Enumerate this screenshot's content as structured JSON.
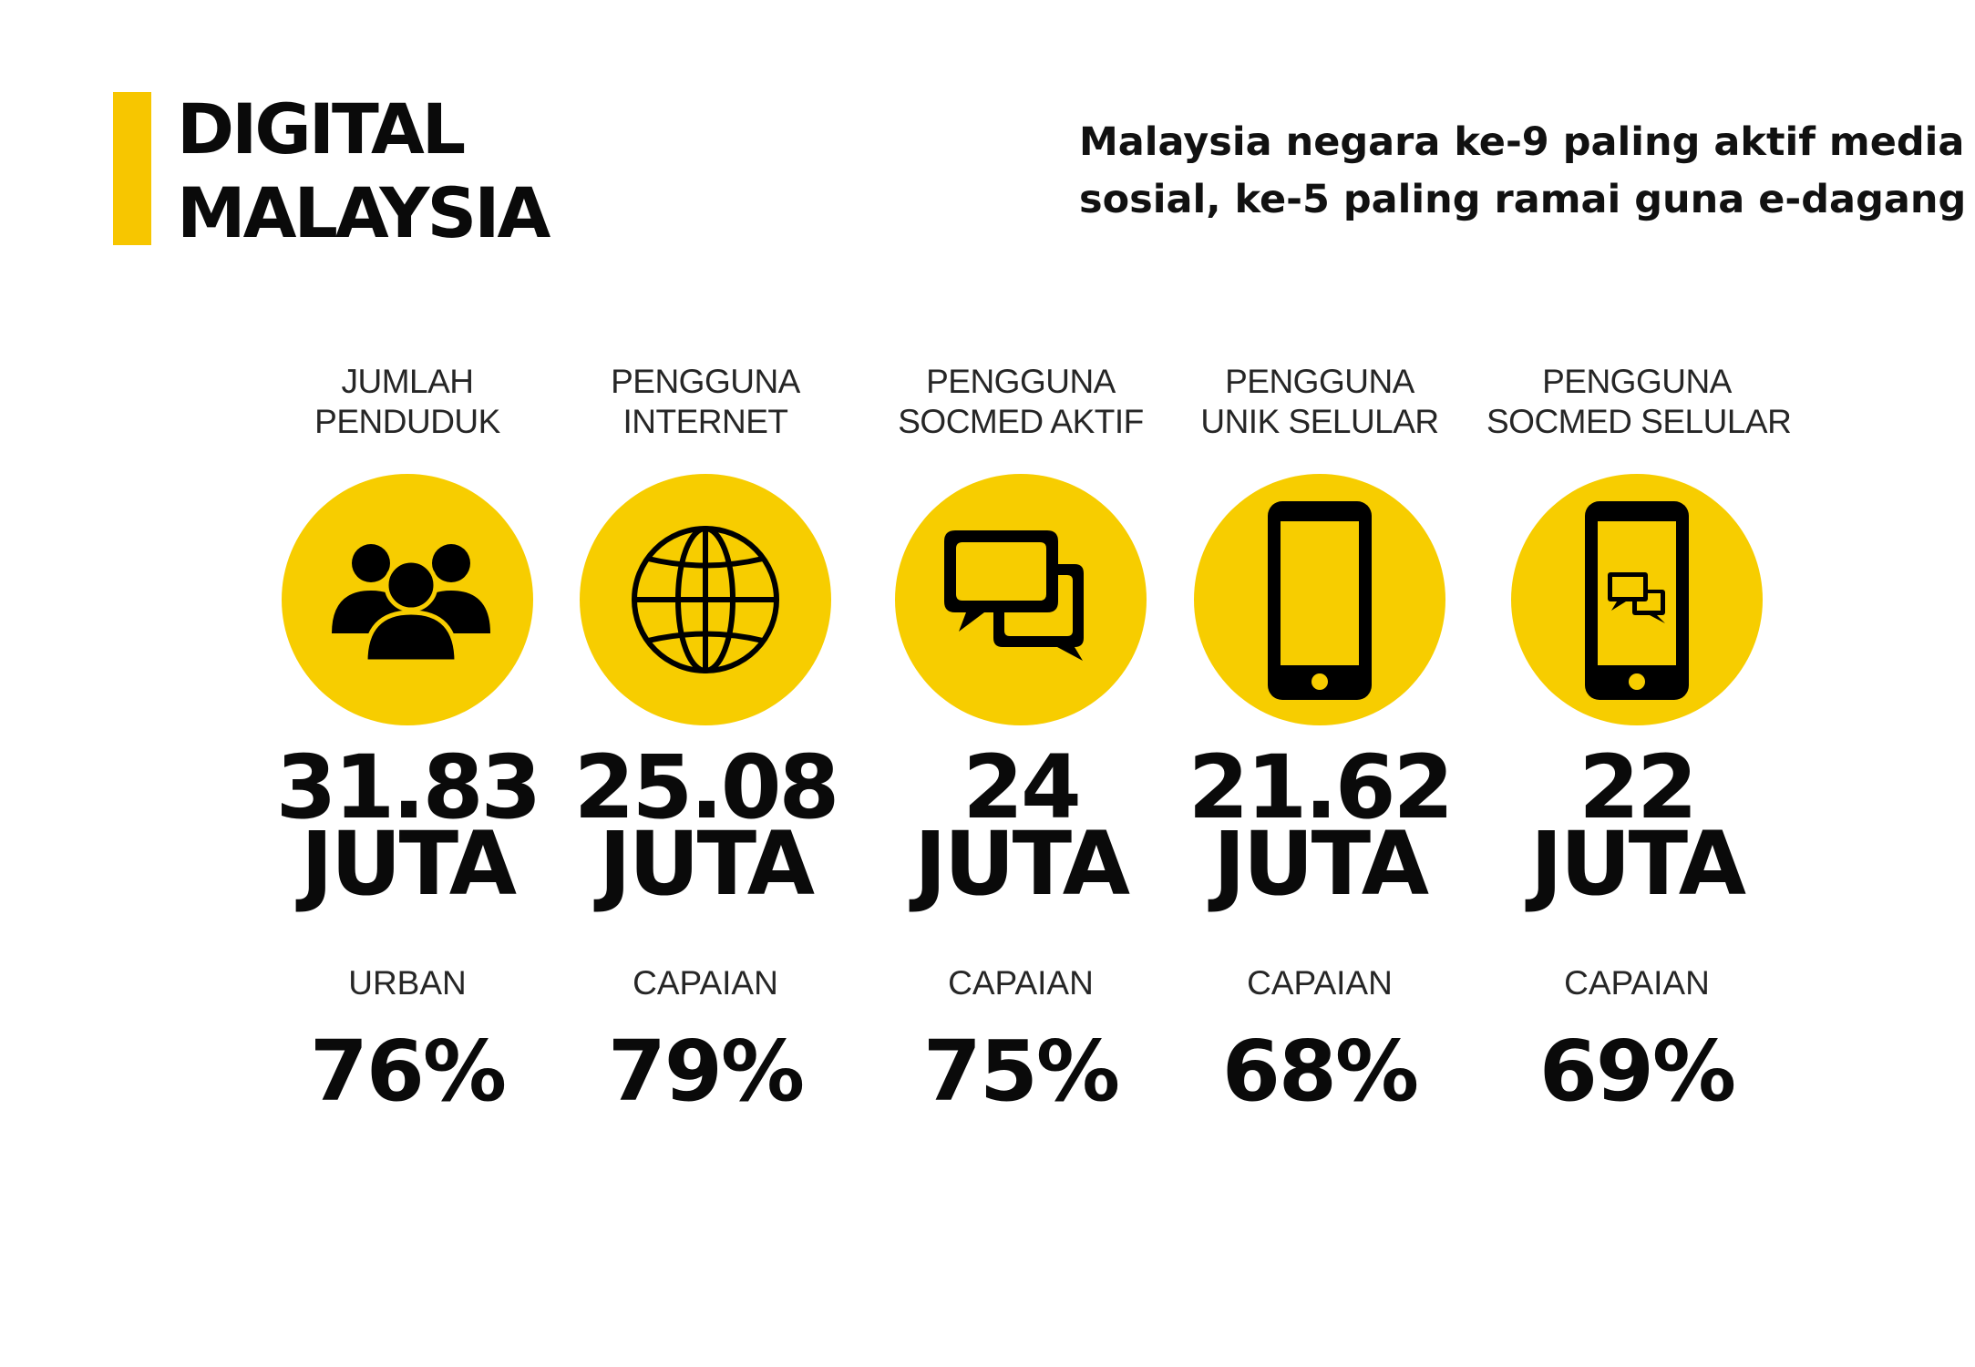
{
  "header": {
    "title_line1": "DIGITAL",
    "title_line2": "MALAYSIA",
    "subtitle_line1": "Malaysia negara ke-9 paling aktif media",
    "subtitle_line2": "sosial, ke-5 paling ramai guna e-dagang"
  },
  "colors": {
    "accent": "#f7c600",
    "circle": "#f7cd00",
    "text": "#111111"
  },
  "stats": [
    {
      "label_line1": "JUMLAH",
      "label_line2": "PENDUDUK",
      "icon": "people-group-icon",
      "value": "31.83",
      "unit": "JUTA",
      "sub_label": "URBAN",
      "percent": "76%"
    },
    {
      "label_line1": "PENGGUNA",
      "label_line2": "INTERNET",
      "icon": "globe-icon",
      "value": "25.08",
      "unit": "JUTA",
      "sub_label": "CAPAIAN",
      "percent": "79%"
    },
    {
      "label_line1": "PENGGUNA",
      "label_line2": "SOCMED AKTIF",
      "icon": "chat-bubbles-icon",
      "value": "24",
      "unit": "JUTA",
      "sub_label": "CAPAIAN",
      "percent": "75%"
    },
    {
      "label_line1": "PENGGUNA",
      "label_line2": "UNIK SELULAR",
      "icon": "mobile-phone-icon",
      "value": "21.62",
      "unit": "JUTA",
      "sub_label": "CAPAIAN",
      "percent": "68%"
    },
    {
      "label_line1": "PENGGUNA",
      "label_line2": "SOCMED SELULAR",
      "icon": "mobile-chat-icon",
      "value": "22",
      "unit": "JUTA",
      "sub_label": "CAPAIAN",
      "percent": "69%"
    }
  ]
}
